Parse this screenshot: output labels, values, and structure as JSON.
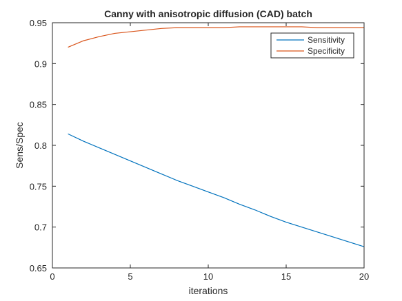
{
  "chart_data": {
    "type": "line",
    "title": "Canny with anisotropic diffusion (CAD) batch",
    "xlabel": "iterations",
    "ylabel": "Sens/Spec",
    "xlim": [
      0,
      20
    ],
    "ylim": [
      0.65,
      0.95
    ],
    "xticks": [
      0,
      5,
      10,
      15,
      20
    ],
    "xtick_labels": [
      "0",
      "5",
      "10",
      "15",
      "20"
    ],
    "yticks": [
      0.65,
      0.7,
      0.75,
      0.8,
      0.85,
      0.9,
      0.95
    ],
    "ytick_labels": [
      "0.65",
      "0.7",
      "0.75",
      "0.8",
      "0.85",
      "0.9",
      "0.95"
    ],
    "grid": false,
    "legend_position": "top-right",
    "x": [
      1,
      2,
      3,
      4,
      5,
      6,
      7,
      8,
      9,
      10,
      11,
      12,
      13,
      14,
      15,
      16,
      17,
      18,
      19,
      20
    ],
    "series": [
      {
        "name": "Sensitivity",
        "color": "#0072BD",
        "values": [
          0.814,
          0.805,
          0.797,
          0.789,
          0.781,
          0.773,
          0.765,
          0.757,
          0.75,
          0.743,
          0.736,
          0.728,
          0.721,
          0.713,
          0.706,
          0.7,
          0.694,
          0.688,
          0.682,
          0.676
        ]
      },
      {
        "name": "Specificity",
        "color": "#D95319",
        "values": [
          0.92,
          0.928,
          0.933,
          0.937,
          0.939,
          0.941,
          0.943,
          0.944,
          0.944,
          0.944,
          0.944,
          0.945,
          0.945,
          0.945,
          0.945,
          0.945,
          0.944,
          0.944,
          0.944,
          0.944
        ]
      }
    ]
  }
}
